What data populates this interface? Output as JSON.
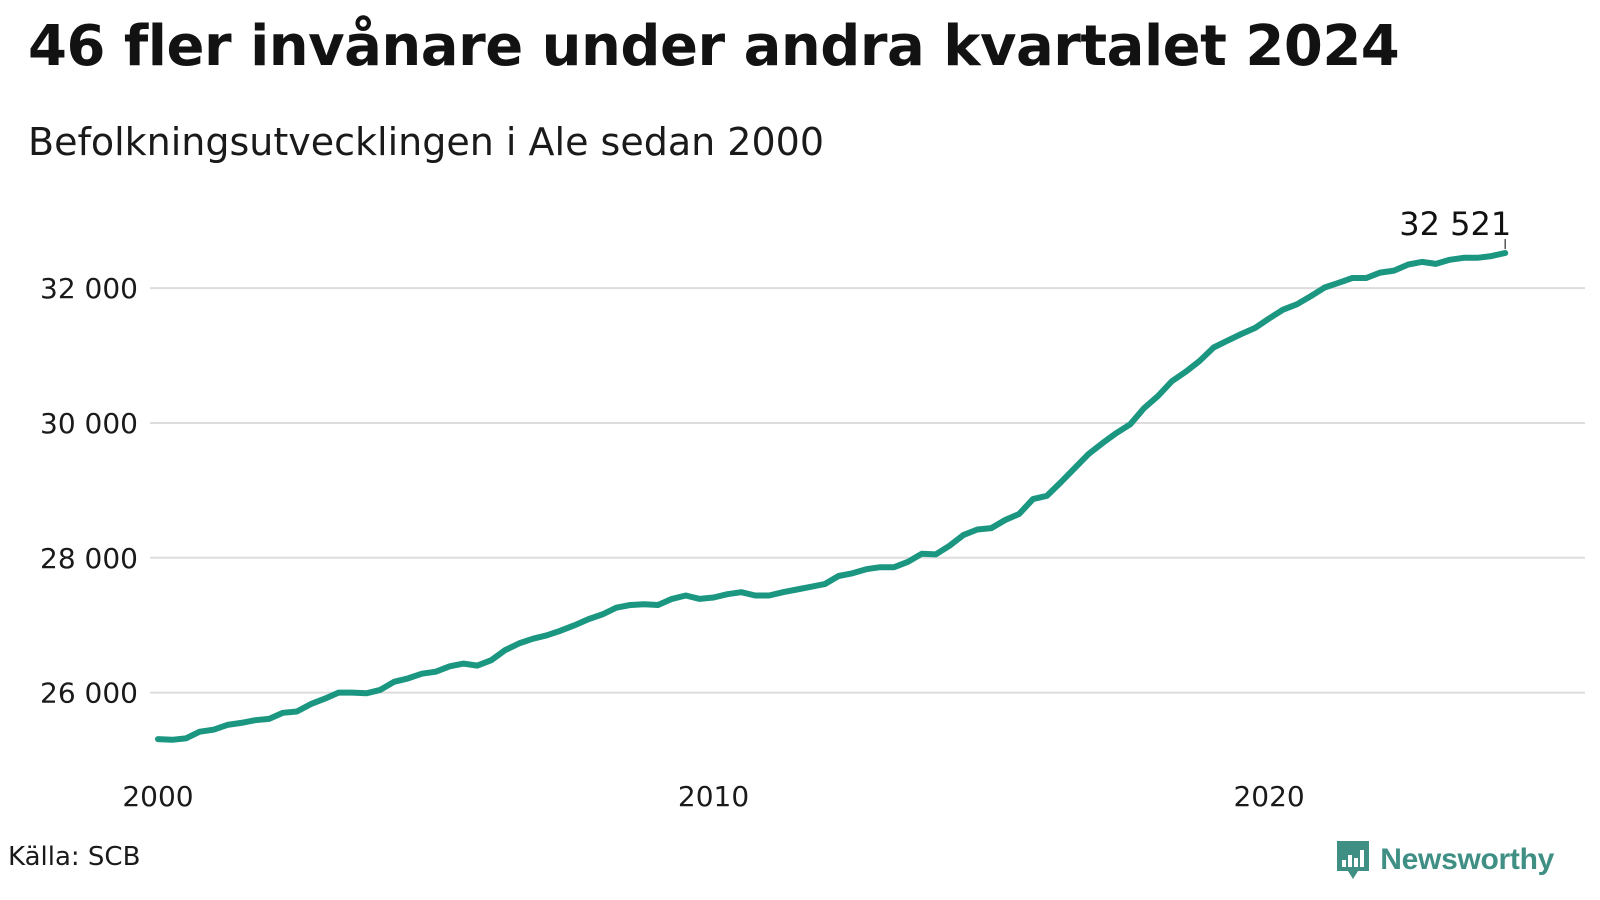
{
  "title": "46 fler invånare under andra kvartalet 2024",
  "subtitle": "Befolkningsutvecklingen i Ale sedan 2000",
  "source": "Källa: SCB",
  "brand": {
    "name": "Newsworthy",
    "icon": "bar-chart-speech-bubble-icon",
    "color": "#3f8f84"
  },
  "colors": {
    "line": "#1a9681",
    "grid": "#dddddd"
  },
  "chart_data": {
    "type": "line",
    "x_type": "quarter",
    "ylim": [
      25000,
      33100
    ],
    "xlim": [
      2000.0,
      2025.2
    ],
    "y_ticks": [
      {
        "value": 26000,
        "label": "26 000"
      },
      {
        "value": 28000,
        "label": "28 000"
      },
      {
        "value": 30000,
        "label": "30 000"
      },
      {
        "value": 32000,
        "label": "32 000"
      }
    ],
    "x_ticks": [
      {
        "value": 2000,
        "label": "2000"
      },
      {
        "value": 2010,
        "label": "2010"
      },
      {
        "value": 2020,
        "label": "2020"
      }
    ],
    "grid": "horizontal",
    "series": [
      {
        "x": [
          "2000Q1",
          "2000Q2",
          "2000Q3",
          "2000Q4",
          "2001Q1",
          "2001Q2",
          "2001Q3",
          "2001Q4",
          "2002Q1",
          "2002Q2",
          "2002Q3",
          "2002Q4",
          "2003Q1",
          "2003Q2",
          "2003Q3",
          "2003Q4",
          "2004Q1",
          "2004Q2",
          "2004Q3",
          "2004Q4",
          "2005Q1",
          "2005Q2",
          "2005Q3",
          "2005Q4",
          "2006Q1",
          "2006Q2",
          "2006Q3",
          "2006Q4",
          "2007Q1",
          "2007Q2",
          "2007Q3",
          "2007Q4",
          "2008Q1",
          "2008Q2",
          "2008Q3",
          "2008Q4",
          "2009Q1",
          "2009Q2",
          "2009Q3",
          "2009Q4",
          "2010Q1",
          "2010Q2",
          "2010Q3",
          "2010Q4",
          "2011Q1",
          "2011Q2",
          "2011Q3",
          "2011Q4",
          "2012Q1",
          "2012Q2",
          "2012Q3",
          "2012Q4",
          "2013Q1",
          "2013Q2",
          "2013Q3",
          "2013Q4",
          "2014Q1",
          "2014Q2",
          "2014Q3",
          "2014Q4",
          "2015Q1",
          "2015Q2",
          "2015Q3",
          "2015Q4",
          "2016Q1",
          "2016Q2",
          "2016Q3",
          "2016Q4",
          "2017Q1",
          "2017Q2",
          "2017Q3",
          "2017Q4",
          "2018Q1",
          "2018Q2",
          "2018Q3",
          "2018Q4",
          "2019Q1",
          "2019Q2",
          "2019Q3",
          "2019Q4",
          "2020Q1",
          "2020Q2",
          "2020Q3",
          "2020Q4",
          "2021Q1",
          "2021Q2",
          "2021Q3",
          "2021Q4",
          "2022Q1",
          "2022Q2",
          "2022Q3",
          "2022Q4",
          "2023Q1",
          "2023Q2",
          "2023Q3",
          "2023Q4",
          "2024Q1",
          "2024Q2"
        ],
        "values": [
          25310,
          25300,
          25320,
          25420,
          25450,
          25520,
          25550,
          25590,
          25610,
          25700,
          25720,
          25830,
          25910,
          26000,
          26000,
          25990,
          26040,
          26160,
          26210,
          26280,
          26310,
          26390,
          26430,
          26400,
          26480,
          26630,
          26730,
          26800,
          26850,
          26920,
          27000,
          27090,
          27160,
          27260,
          27300,
          27310,
          27300,
          27390,
          27440,
          27390,
          27410,
          27460,
          27490,
          27440,
          27440,
          27490,
          27530,
          27570,
          27610,
          27730,
          27770,
          27830,
          27860,
          27860,
          27940,
          28060,
          28050,
          28180,
          28340,
          28420,
          28440,
          28560,
          28650,
          28870,
          28920,
          29120,
          29330,
          29540,
          29700,
          29850,
          29980,
          30220,
          30400,
          30620,
          30760,
          30920,
          31120,
          31220,
          31320,
          31410,
          31550,
          31680,
          31760,
          31880,
          32010,
          32080,
          32150,
          32150,
          32230,
          32260,
          32350,
          32390,
          32360,
          32420,
          32450,
          32450,
          32475,
          32521
        ]
      }
    ],
    "last_value_label": "32 521"
  }
}
